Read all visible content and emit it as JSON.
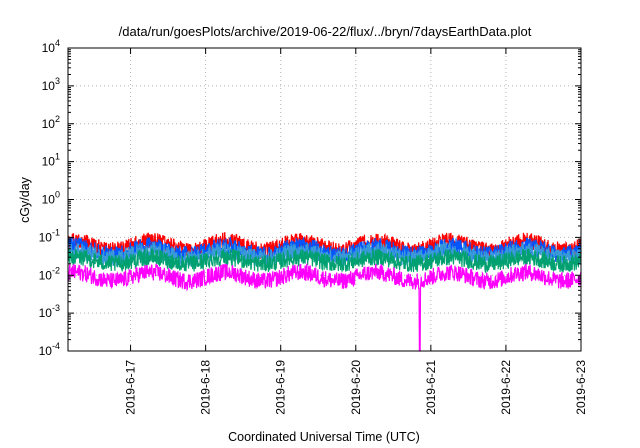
{
  "chart_data": {
    "type": "line",
    "title": "/data/run/goesPlots/archive/2019-06-22/flux/../bryn/7daysEarthData.plot",
    "xlabel": "Coordinated Universal Time (UTC)",
    "ylabel": "cGy/day",
    "y_scale": "log",
    "ylim": [
      0.0001,
      10000
    ],
    "xlim": [
      "2019-06-16 04:00",
      "2019-06-23 00:00"
    ],
    "grid": true,
    "y_ticks": [
      {
        "value": 0.0001,
        "base": "10",
        "exp": "-4"
      },
      {
        "value": 0.001,
        "base": "10",
        "exp": "-3"
      },
      {
        "value": 0.01,
        "base": "10",
        "exp": "-2"
      },
      {
        "value": 0.1,
        "base": "10",
        "exp": "-1"
      },
      {
        "value": 1,
        "base": "10",
        "exp": "0"
      },
      {
        "value": 10,
        "base": "10",
        "exp": "1"
      },
      {
        "value": 100,
        "base": "10",
        "exp": "2"
      },
      {
        "value": 1000,
        "base": "10",
        "exp": "3"
      },
      {
        "value": 10000,
        "base": "10",
        "exp": "4"
      }
    ],
    "x_ticks": [
      "2019-6-17",
      "2019-6-18",
      "2019-6-19",
      "2019-6-20",
      "2019-6-21",
      "2019-6-22",
      "2019-6-23"
    ],
    "series": [
      {
        "color": "#ff0000",
        "baseline": 0.045,
        "peak": 0.08
      },
      {
        "color": "#0055ff",
        "baseline": 0.035,
        "peak": 0.06
      },
      {
        "color": "#3a9ad9",
        "baseline": 0.028,
        "peak": 0.045
      },
      {
        "color": "#00a070",
        "baseline": 0.02,
        "peak": 0.03
      },
      {
        "color": "#ff00ff",
        "baseline": 0.007,
        "peak": 0.012,
        "dropout": {
          "date": "2019-06-20 20:30",
          "min": 0.0001
        }
      }
    ]
  }
}
